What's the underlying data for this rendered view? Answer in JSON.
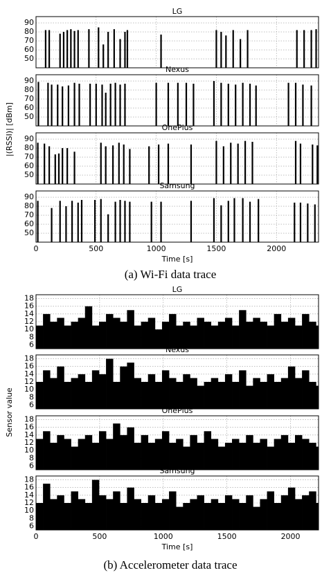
{
  "panels": [
    {
      "caption": "(a) Wi-Fi data trace",
      "ylabel": "|(RSSI)| [dBm]",
      "xlabel": "Time [s]"
    },
    {
      "caption": "(b) Accelerometer data trace",
      "ylabel": "Sensor value",
      "xlabel": "Time [s]"
    }
  ],
  "chart_data": [
    {
      "type": "bar",
      "title": "LG",
      "color": "#000000",
      "grid": true,
      "xlim": [
        0,
        2350
      ],
      "ylim": [
        40,
        97
      ],
      "xticks": [
        0,
        500,
        1000,
        1500,
        2000
      ],
      "yticks": [
        50,
        60,
        70,
        80,
        90
      ],
      "x": [
        80,
        110,
        200,
        230,
        260,
        290,
        320,
        350,
        440,
        520,
        560,
        600,
        650,
        700,
        740,
        760,
        1040,
        1500,
        1540,
        1580,
        1640,
        1700,
        1760,
        2170,
        2230,
        2290,
        2330
      ],
      "values": [
        82,
        82,
        78,
        80,
        82,
        83,
        81,
        82,
        83,
        85,
        66,
        80,
        83,
        72,
        80,
        82,
        77,
        82,
        80,
        76,
        82,
        72,
        82,
        82,
        82,
        82,
        83
      ]
    },
    {
      "type": "bar",
      "title": "Nexus",
      "color": "#000000",
      "grid": true,
      "xlim": [
        0,
        2350
      ],
      "ylim": [
        40,
        97
      ],
      "xticks": [
        0,
        500,
        1000,
        1500,
        2000
      ],
      "yticks": [
        50,
        60,
        70,
        80,
        90
      ],
      "x": [
        20,
        100,
        130,
        180,
        220,
        270,
        320,
        360,
        450,
        500,
        550,
        580,
        620,
        660,
        700,
        740,
        1000,
        1100,
        1180,
        1250,
        1310,
        1480,
        1540,
        1600,
        1660,
        1720,
        1780,
        1830,
        2100,
        2160,
        2220,
        2290
      ],
      "values": [
        89,
        88,
        86,
        86,
        84,
        85,
        88,
        87,
        87,
        87,
        86,
        77,
        87,
        88,
        86,
        87,
        88,
        88,
        88,
        88,
        87,
        90,
        88,
        87,
        86,
        88,
        87,
        85,
        88,
        88,
        86,
        85
      ]
    },
    {
      "type": "bar",
      "title": "OnePlus",
      "color": "#000000",
      "grid": true,
      "xlim": [
        0,
        2350
      ],
      "ylim": [
        40,
        97
      ],
      "xticks": [
        0,
        500,
        1000,
        1500,
        2000
      ],
      "yticks": [
        50,
        60,
        70,
        80,
        90
      ],
      "x": [
        15,
        70,
        110,
        160,
        190,
        220,
        260,
        320,
        540,
        580,
        640,
        690,
        730,
        780,
        940,
        1020,
        1100,
        1290,
        1500,
        1560,
        1620,
        1680,
        1740,
        1800,
        2160,
        2200,
        2300,
        2340
      ],
      "values": [
        86,
        85,
        82,
        73,
        74,
        80,
        80,
        76,
        86,
        82,
        83,
        86,
        84,
        79,
        82,
        84,
        85,
        84,
        88,
        82,
        86,
        85,
        88,
        87,
        88,
        85,
        84,
        83
      ]
    },
    {
      "type": "bar",
      "title": "Samsung",
      "color": "#000000",
      "grid": true,
      "xlim": [
        0,
        2350
      ],
      "ylim": [
        40,
        97
      ],
      "xticks": [
        0,
        500,
        1000,
        1500,
        2000
      ],
      "yticks": [
        50,
        60,
        70,
        80,
        90
      ],
      "x": [
        15,
        130,
        200,
        250,
        300,
        350,
        380,
        490,
        540,
        600,
        660,
        700,
        740,
        780,
        960,
        1040,
        1290,
        1480,
        1540,
        1600,
        1650,
        1720,
        1780,
        1850,
        2150,
        2200,
        2260,
        2320
      ],
      "values": [
        86,
        78,
        86,
        80,
        86,
        84,
        87,
        87,
        88,
        71,
        85,
        87,
        86,
        85,
        85,
        85,
        86,
        89,
        81,
        86,
        89,
        89,
        85,
        88,
        84,
        84,
        83,
        82
      ]
    },
    {
      "type": "area",
      "title": "LG",
      "color": "#000000",
      "grid": true,
      "xlim": [
        0,
        2220
      ],
      "ylim": [
        5,
        19
      ],
      "xticks": [
        0,
        500,
        1000,
        1500,
        2000
      ],
      "yticks": [
        6,
        8,
        10,
        12,
        14,
        16,
        18
      ],
      "x": [
        0,
        55,
        110,
        165,
        220,
        275,
        330,
        385,
        440,
        495,
        550,
        605,
        660,
        715,
        770,
        825,
        880,
        935,
        990,
        1045,
        1100,
        1155,
        1210,
        1265,
        1320,
        1375,
        1430,
        1485,
        1540,
        1595,
        1650,
        1705,
        1760,
        1815,
        1870,
        1925,
        1980,
        2035,
        2090,
        2145,
        2200
      ],
      "values": [
        11,
        14,
        12,
        13,
        11,
        12,
        13,
        16,
        11,
        12,
        14,
        13,
        12,
        15,
        11,
        12,
        13,
        10,
        12,
        14,
        11,
        12,
        11,
        13,
        12,
        11,
        12,
        13,
        11,
        15,
        12,
        13,
        12,
        11,
        14,
        12,
        13,
        11,
        14,
        12,
        11
      ]
    },
    {
      "type": "area",
      "title": "Nexus",
      "color": "#000000",
      "grid": true,
      "xlim": [
        0,
        2220
      ],
      "ylim": [
        5,
        19
      ],
      "xticks": [
        0,
        500,
        1000,
        1500,
        2000
      ],
      "yticks": [
        6,
        8,
        10,
        12,
        14,
        16,
        18
      ],
      "x": [
        0,
        55,
        110,
        165,
        220,
        275,
        330,
        385,
        440,
        495,
        550,
        605,
        660,
        715,
        770,
        825,
        880,
        935,
        990,
        1045,
        1100,
        1155,
        1210,
        1265,
        1320,
        1375,
        1430,
        1485,
        1540,
        1595,
        1650,
        1705,
        1760,
        1815,
        1870,
        1925,
        1980,
        2035,
        2090,
        2145,
        2200
      ],
      "values": [
        12,
        15,
        13,
        16,
        12,
        13,
        14,
        12,
        15,
        14,
        18,
        12,
        16,
        17,
        13,
        12,
        14,
        12,
        15,
        13,
        12,
        14,
        13,
        11,
        12,
        13,
        12,
        14,
        12,
        15,
        11,
        13,
        12,
        14,
        12,
        13,
        16,
        13,
        15,
        12,
        11
      ]
    },
    {
      "type": "area",
      "title": "OnePlus",
      "color": "#000000",
      "grid": true,
      "xlim": [
        0,
        2220
      ],
      "ylim": [
        5,
        19
      ],
      "xticks": [
        0,
        500,
        1000,
        1500,
        2000
      ],
      "yticks": [
        6,
        8,
        10,
        12,
        14,
        16,
        18
      ],
      "x": [
        0,
        55,
        110,
        165,
        220,
        275,
        330,
        385,
        440,
        495,
        550,
        605,
        660,
        715,
        770,
        825,
        880,
        935,
        990,
        1045,
        1100,
        1155,
        1210,
        1265,
        1320,
        1375,
        1430,
        1485,
        1540,
        1595,
        1650,
        1705,
        1760,
        1815,
        1870,
        1925,
        1980,
        2035,
        2090,
        2145,
        2200
      ],
      "values": [
        13,
        15,
        12,
        14,
        13,
        11,
        13,
        14,
        12,
        15,
        13,
        17,
        14,
        16,
        12,
        14,
        12,
        13,
        15,
        12,
        13,
        11,
        14,
        12,
        15,
        13,
        11,
        12,
        13,
        12,
        14,
        12,
        13,
        11,
        13,
        14,
        12,
        14,
        13,
        12,
        11
      ]
    },
    {
      "type": "area",
      "title": "Samsung",
      "color": "#000000",
      "grid": true,
      "xlim": [
        0,
        2220
      ],
      "ylim": [
        5,
        19
      ],
      "xticks": [
        0,
        500,
        1000,
        1500,
        2000
      ],
      "yticks": [
        6,
        8,
        10,
        12,
        14,
        16,
        18
      ],
      "x": [
        0,
        55,
        110,
        165,
        220,
        275,
        330,
        385,
        440,
        495,
        550,
        605,
        660,
        715,
        770,
        825,
        880,
        935,
        990,
        1045,
        1100,
        1155,
        1210,
        1265,
        1320,
        1375,
        1430,
        1485,
        1540,
        1595,
        1650,
        1705,
        1760,
        1815,
        1870,
        1925,
        1980,
        2035,
        2090,
        2145,
        2200
      ],
      "values": [
        12,
        17,
        13,
        14,
        12,
        15,
        13,
        12,
        18,
        14,
        13,
        15,
        12,
        16,
        13,
        12,
        14,
        12,
        13,
        15,
        11,
        12,
        13,
        14,
        12,
        13,
        12,
        14,
        13,
        12,
        14,
        11,
        13,
        15,
        12,
        14,
        16,
        13,
        14,
        15,
        12
      ]
    }
  ]
}
